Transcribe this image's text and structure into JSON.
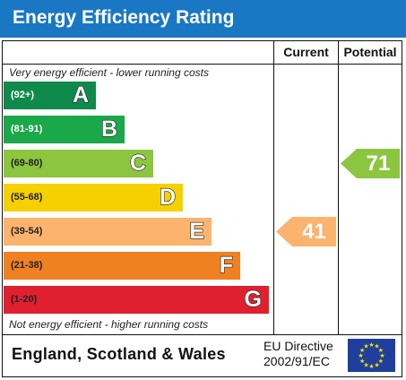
{
  "title": "Energy Efficiency Rating",
  "columns": {
    "current": "Current",
    "potential": "Potential"
  },
  "notes": {
    "top": "Very energy efficient - lower running costs",
    "bottom": "Not energy efficient - higher running costs"
  },
  "chart_data": {
    "type": "bar",
    "categories": [
      "A",
      "B",
      "C",
      "D",
      "E",
      "F",
      "G"
    ],
    "bands": [
      {
        "letter": "A",
        "range": "(92+)",
        "color": "#0f8a4a",
        "text_color": "#ffffff"
      },
      {
        "letter": "B",
        "range": "(81-91)",
        "color": "#1aa84a",
        "text_color": "#ffffff"
      },
      {
        "letter": "C",
        "range": "(69-80)",
        "color": "#8cc63f",
        "text_color": "#222222"
      },
      {
        "letter": "D",
        "range": "(55-68)",
        "color": "#f6d000",
        "text_color": "#222222"
      },
      {
        "letter": "E",
        "range": "(39-54)",
        "color": "#fbb36e",
        "text_color": "#222222"
      },
      {
        "letter": "F",
        "range": "(21-38)",
        "color": "#f08122",
        "text_color": "#222222"
      },
      {
        "letter": "G",
        "range": "(1-20)",
        "color": "#e0202f",
        "text_color": "#222222"
      }
    ],
    "current": {
      "value": "41",
      "band": "E",
      "color": "#fbb36e"
    },
    "potential": {
      "value": "71",
      "band": "C",
      "color": "#8cc63f"
    }
  },
  "footer": {
    "region": "England, Scotland & Wales",
    "directive_line1": "EU Directive",
    "directive_line2": "2002/91/EC"
  }
}
